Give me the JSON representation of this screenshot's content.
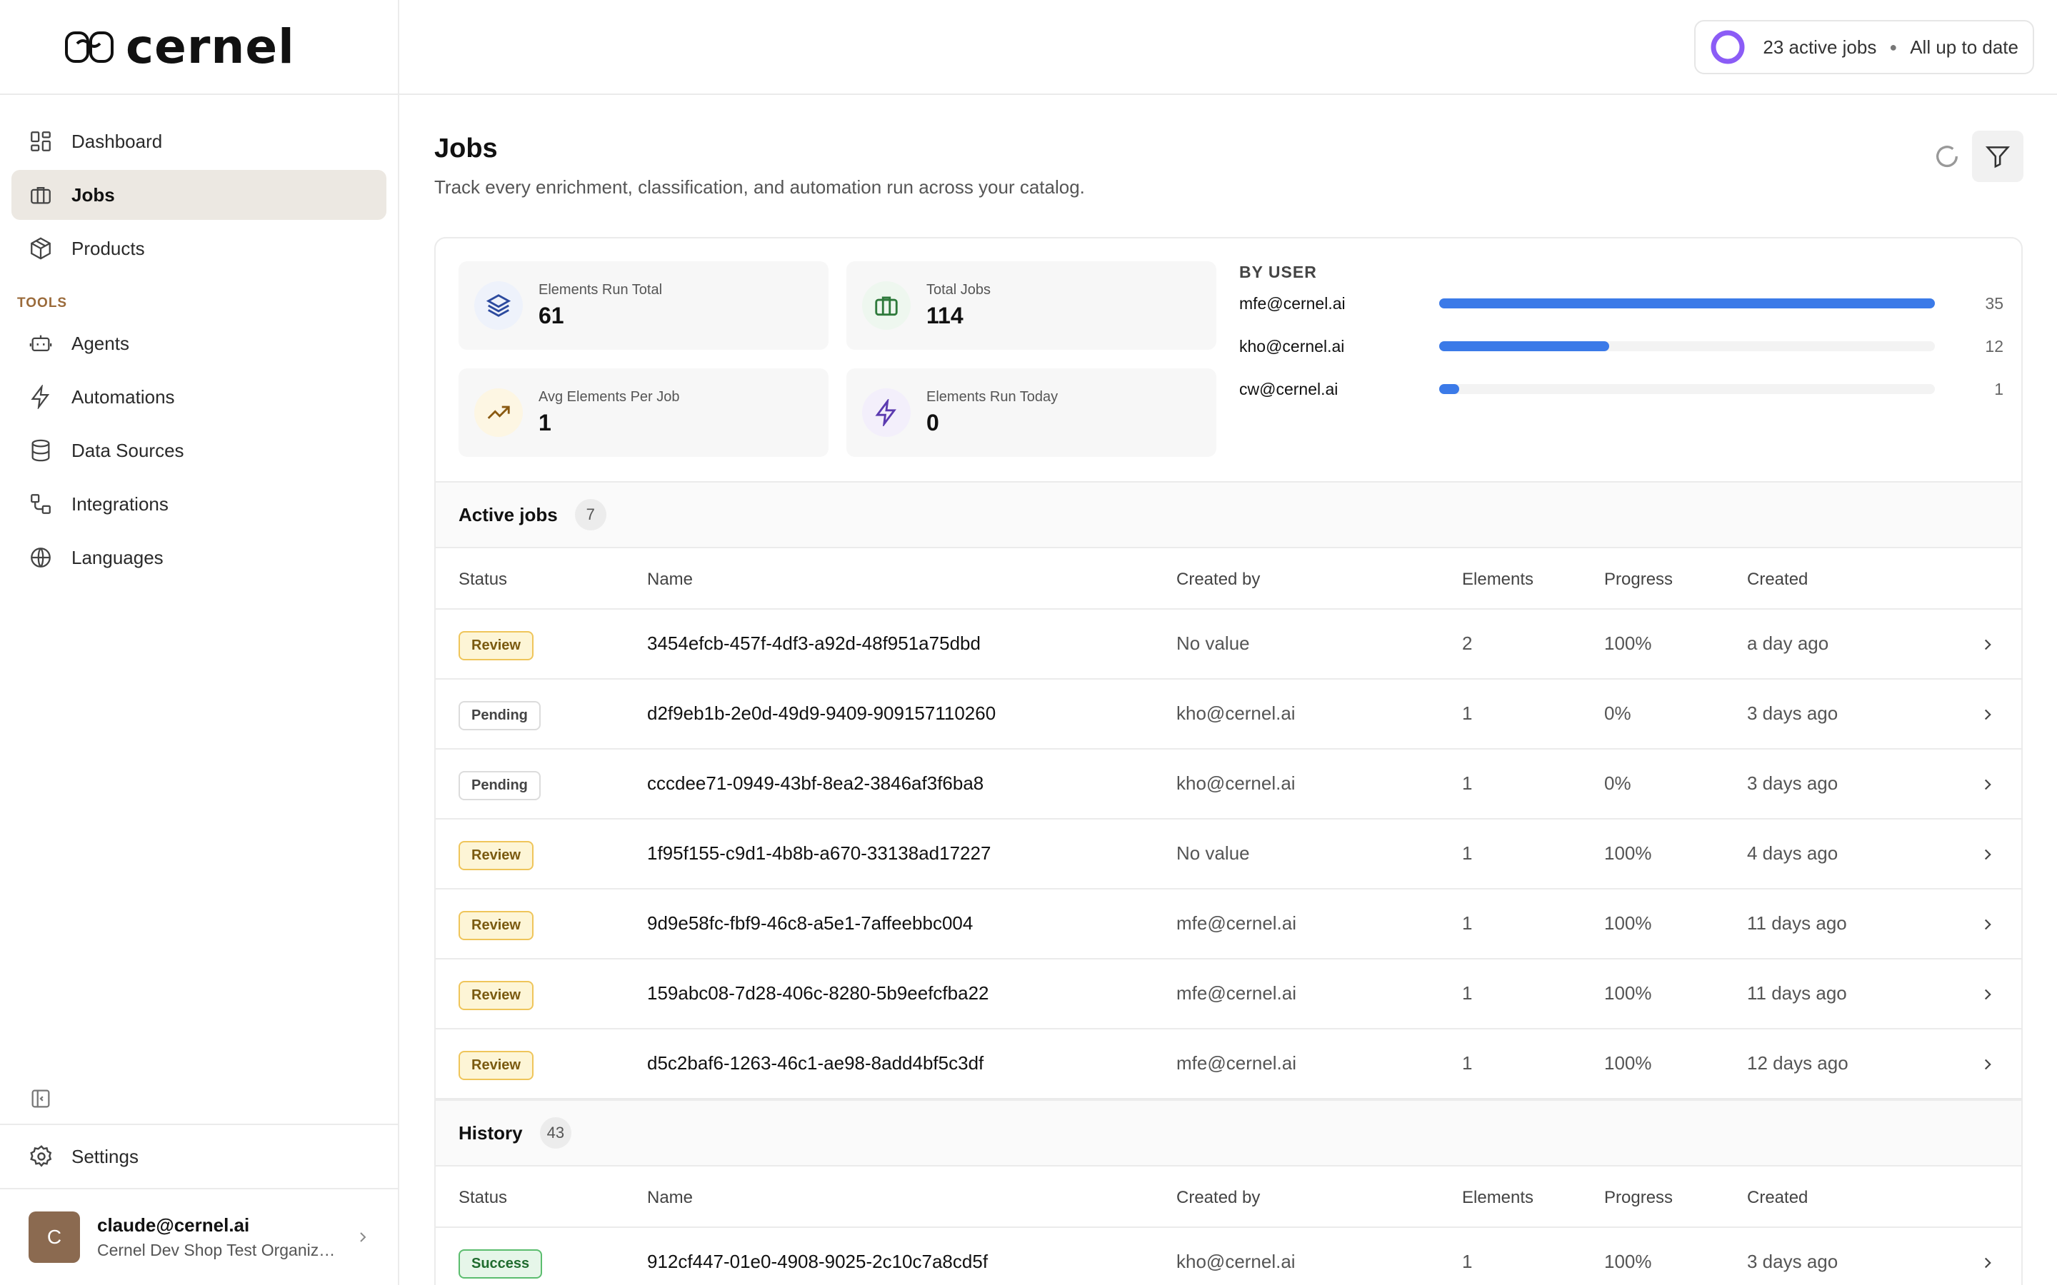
{
  "brand": {
    "name": "cernel"
  },
  "sidebar": {
    "items": [
      {
        "label": "Dashboard",
        "icon": "grid-icon"
      },
      {
        "label": "Jobs",
        "icon": "briefcase-icon",
        "active": true
      },
      {
        "label": "Products",
        "icon": "box-icon"
      }
    ],
    "tools_label": "TOOLS",
    "tools": [
      {
        "label": "Agents",
        "icon": "robot-icon"
      },
      {
        "label": "Automations",
        "icon": "bolt-icon"
      },
      {
        "label": "Data Sources",
        "icon": "database-icon"
      },
      {
        "label": "Integrations",
        "icon": "integration-icon"
      },
      {
        "label": "Languages",
        "icon": "globe-icon"
      }
    ],
    "settings_label": "Settings",
    "user": {
      "initial": "C",
      "email": "claude@cernel.ai",
      "org": "Cernel Dev Shop Test Organization"
    }
  },
  "topbar": {
    "active_jobs": "23 active jobs",
    "status": "All up to date"
  },
  "page": {
    "title": "Jobs",
    "subtitle": "Track every enrichment, classification, and automation run across your catalog."
  },
  "stats": [
    {
      "label": "Elements Run Total",
      "value": "61",
      "icon": "layers-icon"
    },
    {
      "label": "Total Jobs",
      "value": "114",
      "icon": "briefcase-icon"
    },
    {
      "label": "Avg Elements Per Job",
      "value": "1",
      "icon": "trend-up-icon"
    },
    {
      "label": "Elements Run Today",
      "value": "0",
      "icon": "bolt-icon"
    }
  ],
  "by_user": {
    "title": "BY USER",
    "rows": [
      {
        "name": "mfe@cernel.ai",
        "count": "35",
        "fraction": 1.0
      },
      {
        "name": "kho@cernel.ai",
        "count": "12",
        "fraction": 0.343
      },
      {
        "name": "cw@cernel.ai",
        "count": "1",
        "fraction": 0.04
      }
    ]
  },
  "active_jobs": {
    "title": "Active jobs",
    "count": "7",
    "columns": [
      "Status",
      "Name",
      "Created by",
      "Elements",
      "Progress",
      "Created"
    ],
    "rows": [
      {
        "status": "Review",
        "kind": "review",
        "name": "3454efcb-457f-4df3-a92d-48f951a75dbd",
        "created_by": "No value",
        "elements": "2",
        "progress": "100%",
        "created": "a day ago"
      },
      {
        "status": "Pending",
        "kind": "pending",
        "name": "d2f9eb1b-2e0d-49d9-9409-909157110260",
        "created_by": "kho@cernel.ai",
        "elements": "1",
        "progress": "0%",
        "created": "3 days ago"
      },
      {
        "status": "Pending",
        "kind": "pending",
        "name": "cccdee71-0949-43bf-8ea2-3846af3f6ba8",
        "created_by": "kho@cernel.ai",
        "elements": "1",
        "progress": "0%",
        "created": "3 days ago"
      },
      {
        "status": "Review",
        "kind": "review",
        "name": "1f95f155-c9d1-4b8b-a670-33138ad17227",
        "created_by": "No value",
        "elements": "1",
        "progress": "100%",
        "created": "4 days ago"
      },
      {
        "status": "Review",
        "kind": "review",
        "name": "9d9e58fc-fbf9-46c8-a5e1-7affeebbc004",
        "created_by": "mfe@cernel.ai",
        "elements": "1",
        "progress": "100%",
        "created": "11 days ago"
      },
      {
        "status": "Review",
        "kind": "review",
        "name": "159abc08-7d28-406c-8280-5b9eefcfba22",
        "created_by": "mfe@cernel.ai",
        "elements": "1",
        "progress": "100%",
        "created": "11 days ago"
      },
      {
        "status": "Review",
        "kind": "review",
        "name": "d5c2baf6-1263-46c1-ae98-8add4bf5c3df",
        "created_by": "mfe@cernel.ai",
        "elements": "1",
        "progress": "100%",
        "created": "12 days ago"
      }
    ]
  },
  "history": {
    "title": "History",
    "count": "43",
    "columns": [
      "Status",
      "Name",
      "Created by",
      "Elements",
      "Progress",
      "Created"
    ],
    "rows": [
      {
        "status": "Success",
        "kind": "success",
        "name": "912cf447-01e0-4908-9025-2c10c7a8cd5f",
        "created_by": "kho@cernel.ai",
        "elements": "1",
        "progress": "100%",
        "created": "3 days ago"
      }
    ]
  },
  "colors": {
    "accent": "#3b7ae8",
    "ring": "#8b5cf6",
    "active_nav": "#ece8e2"
  }
}
